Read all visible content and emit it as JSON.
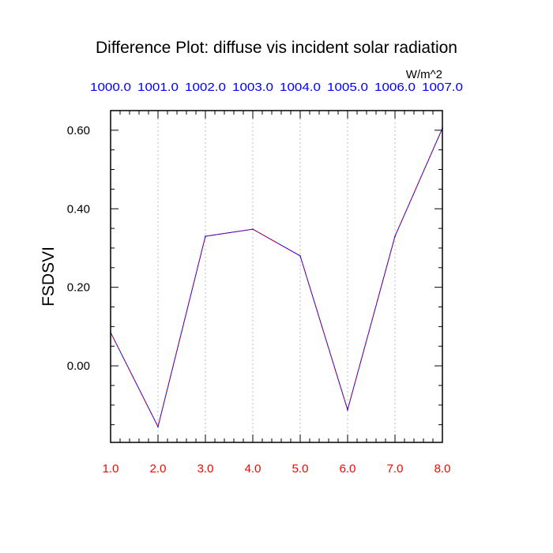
{
  "chart_data": {
    "type": "line",
    "title": "Difference Plot: diffuse vis incident solar radiation",
    "units": "W/m^2",
    "ylabel": "FSDSVI",
    "xlabel": "",
    "x": [
      1.0,
      2.0,
      3.0,
      4.0,
      5.0,
      6.0,
      7.0,
      8.0
    ],
    "xlim": [
      1.0,
      8.0
    ],
    "ylim": [
      -0.195,
      0.65
    ],
    "bottom_tick_labels": [
      "1.0",
      "2.0",
      "3.0",
      "4.0",
      "5.0",
      "6.0",
      "7.0",
      "8.0"
    ],
    "top_tick_labels": [
      "1000.0",
      "1001.0",
      "1002.0",
      "1003.0",
      "1004.0",
      "1005.0",
      "1006.0",
      "1007.0"
    ],
    "y_ticks": [
      0.0,
      0.2,
      0.4,
      0.6
    ],
    "y_tick_labels": [
      "0.00",
      "0.20",
      "0.40",
      "0.60"
    ],
    "series": [
      {
        "values": [
          0.085,
          -0.155,
          0.33,
          0.348,
          0.28,
          -0.112,
          0.33,
          0.605
        ],
        "color": "#0000ff",
        "dash_color": "#ff0000"
      }
    ],
    "grid": "vertical-dotted",
    "colors": {
      "bottom_axis_labels": "#ff0000",
      "top_axis_labels": "#0000ff",
      "gridline": "#bbbbbb"
    }
  }
}
